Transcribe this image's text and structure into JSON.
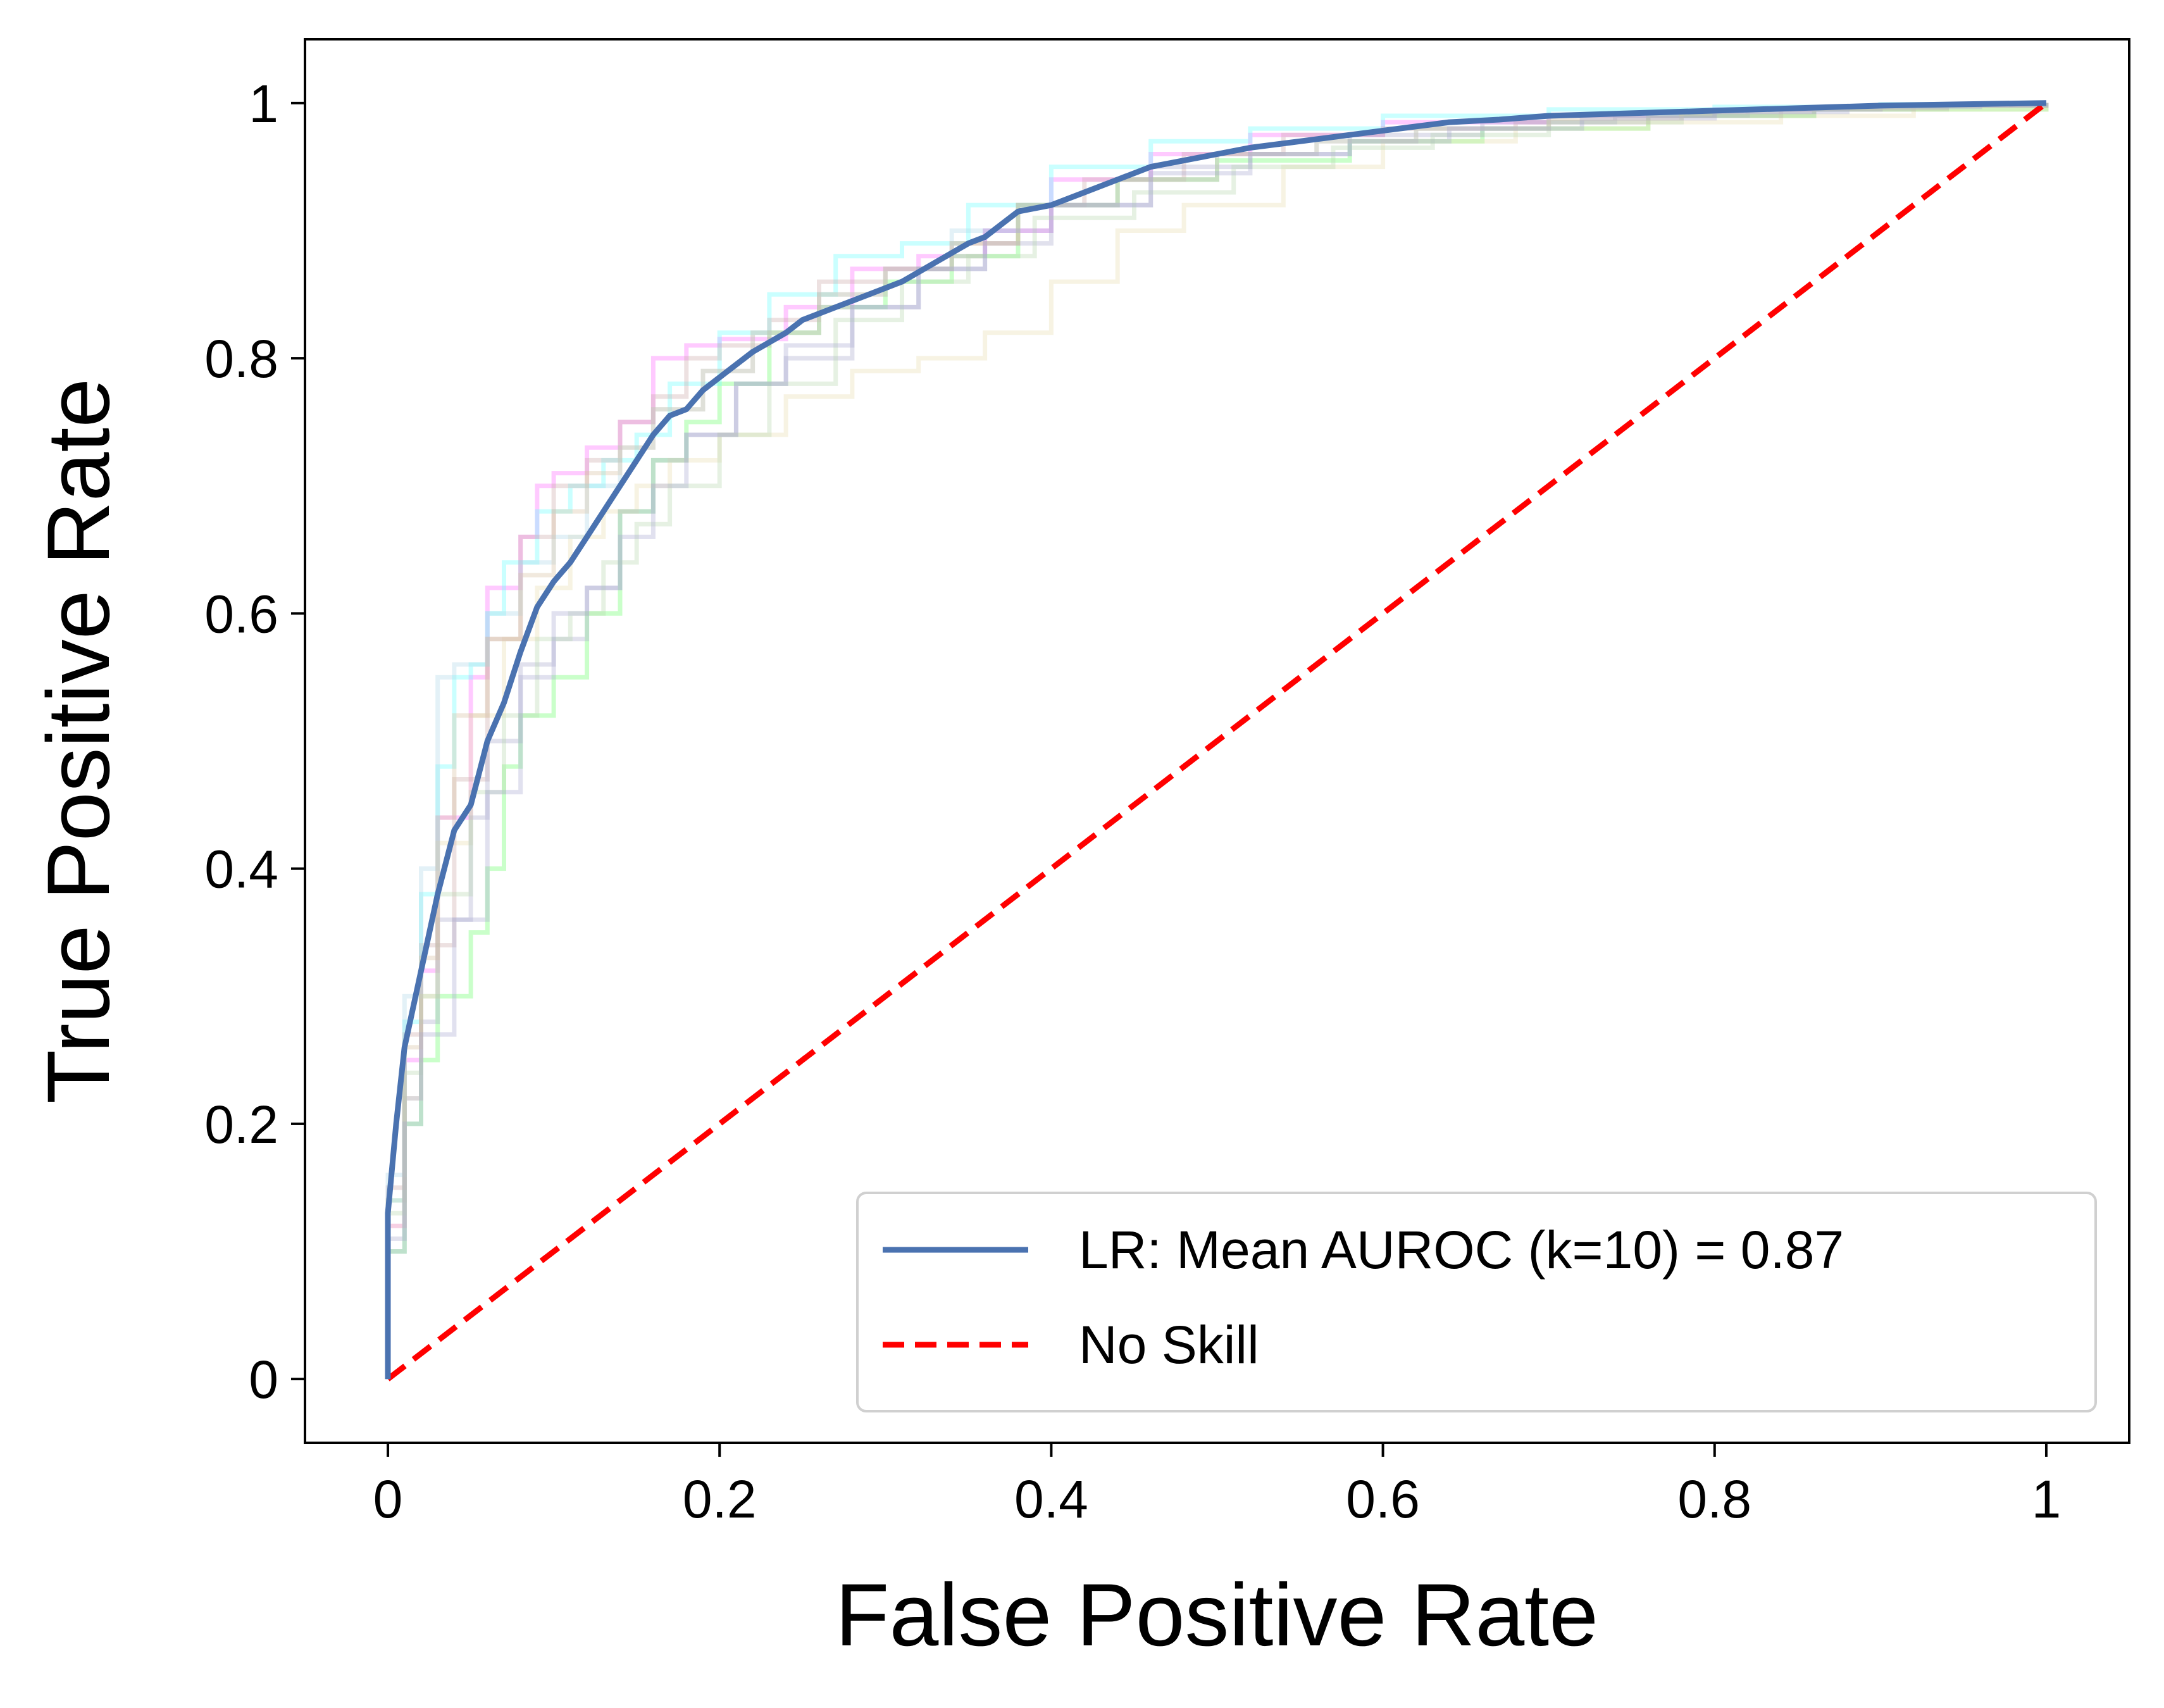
{
  "chart_data": {
    "type": "line",
    "title": "",
    "xlabel": "False Positive Rate",
    "ylabel": "True Positive Rate",
    "xlim": [
      -0.05,
      1.05
    ],
    "ylim": [
      -0.05,
      1.05
    ],
    "xticks": [
      0,
      0.2,
      0.4,
      0.6,
      0.8,
      1
    ],
    "xtick_labels": [
      "0",
      "0.2",
      "0.4",
      "0.6",
      "0.8",
      "1"
    ],
    "yticks": [
      0,
      0.2,
      0.4,
      0.6,
      0.8,
      1
    ],
    "ytick_labels": [
      "0",
      "0.2",
      "0.4",
      "0.6",
      "0.8",
      "1"
    ],
    "grid": false,
    "legend_position": "lower-right",
    "series": [
      {
        "name": "LR: Mean AUROC (k=10) = 0.87",
        "color": "#4a72b0",
        "style": "solid",
        "x": [
          0,
          0,
          0.005,
          0.01,
          0.02,
          0.03,
          0.04,
          0.05,
          0.06,
          0.07,
          0.08,
          0.09,
          0.1,
          0.11,
          0.12,
          0.13,
          0.14,
          0.15,
          0.16,
          0.17,
          0.18,
          0.19,
          0.2,
          0.22,
          0.24,
          0.25,
          0.27,
          0.29,
          0.31,
          0.33,
          0.35,
          0.36,
          0.38,
          0.4,
          0.42,
          0.44,
          0.46,
          0.48,
          0.5,
          0.52,
          0.55,
          0.58,
          0.61,
          0.64,
          0.67,
          0.7,
          0.75,
          0.8,
          0.85,
          0.9,
          0.95,
          1.0
        ],
        "y": [
          0,
          0.13,
          0.2,
          0.26,
          0.32,
          0.38,
          0.43,
          0.45,
          0.5,
          0.53,
          0.57,
          0.605,
          0.625,
          0.64,
          0.66,
          0.68,
          0.7,
          0.72,
          0.74,
          0.755,
          0.76,
          0.775,
          0.785,
          0.805,
          0.82,
          0.83,
          0.84,
          0.85,
          0.86,
          0.875,
          0.89,
          0.895,
          0.915,
          0.92,
          0.93,
          0.94,
          0.95,
          0.955,
          0.96,
          0.965,
          0.97,
          0.975,
          0.98,
          0.985,
          0.987,
          0.99,
          0.992,
          0.994,
          0.996,
          0.998,
          0.999,
          1.0
        ]
      },
      {
        "name": "No Skill",
        "color": "#ff0000",
        "style": "dashed",
        "x": [
          0,
          1
        ],
        "y": [
          0,
          1
        ]
      }
    ],
    "folds": [
      {
        "color": "#ff66ff",
        "x": [
          0,
          0,
          0.01,
          0.02,
          0.03,
          0.05,
          0.06,
          0.08,
          0.09,
          0.1,
          0.12,
          0.14,
          0.16,
          0.18,
          0.2,
          0.24,
          0.28,
          0.32,
          0.36,
          0.4,
          0.46,
          0.52,
          0.6,
          0.7,
          0.8,
          0.9,
          1.0
        ],
        "y": [
          0,
          0.12,
          0.25,
          0.32,
          0.44,
          0.55,
          0.62,
          0.66,
          0.7,
          0.71,
          0.73,
          0.75,
          0.8,
          0.81,
          0.815,
          0.84,
          0.87,
          0.88,
          0.9,
          0.94,
          0.96,
          0.975,
          0.985,
          0.99,
          0.995,
          0.998,
          1.0
        ]
      },
      {
        "color": "#66ff66",
        "x": [
          0,
          0,
          0.01,
          0.02,
          0.03,
          0.05,
          0.06,
          0.07,
          0.08,
          0.1,
          0.12,
          0.14,
          0.16,
          0.18,
          0.2,
          0.23,
          0.26,
          0.3,
          0.34,
          0.38,
          0.44,
          0.5,
          0.58,
          0.66,
          0.76,
          0.86,
          1.0
        ],
        "y": [
          0,
          0.1,
          0.2,
          0.25,
          0.3,
          0.35,
          0.4,
          0.48,
          0.52,
          0.55,
          0.6,
          0.68,
          0.72,
          0.75,
          0.78,
          0.82,
          0.84,
          0.86,
          0.88,
          0.92,
          0.94,
          0.955,
          0.97,
          0.98,
          0.99,
          0.995,
          1.0
        ]
      },
      {
        "color": "#66ffff",
        "x": [
          0,
          0,
          0.01,
          0.02,
          0.03,
          0.04,
          0.05,
          0.06,
          0.07,
          0.09,
          0.11,
          0.13,
          0.15,
          0.17,
          0.2,
          0.23,
          0.27,
          0.31,
          0.35,
          0.4,
          0.46,
          0.52,
          0.6,
          0.7,
          0.8,
          0.9,
          1.0
        ],
        "y": [
          0,
          0.14,
          0.28,
          0.38,
          0.48,
          0.55,
          0.56,
          0.6,
          0.64,
          0.68,
          0.7,
          0.72,
          0.74,
          0.78,
          0.82,
          0.85,
          0.88,
          0.89,
          0.92,
          0.95,
          0.97,
          0.98,
          0.99,
          0.995,
          0.997,
          0.999,
          1.0
        ]
      },
      {
        "color": "#e8dcb0",
        "x": [
          0,
          0,
          0.01,
          0.02,
          0.03,
          0.05,
          0.07,
          0.09,
          0.11,
          0.13,
          0.15,
          0.17,
          0.2,
          0.24,
          0.28,
          0.32,
          0.36,
          0.4,
          0.44,
          0.48,
          0.54,
          0.6,
          0.68,
          0.76,
          0.84,
          0.92,
          1.0
        ],
        "y": [
          0,
          0.12,
          0.22,
          0.3,
          0.42,
          0.52,
          0.58,
          0.62,
          0.66,
          0.68,
          0.7,
          0.72,
          0.74,
          0.77,
          0.79,
          0.8,
          0.82,
          0.86,
          0.9,
          0.92,
          0.95,
          0.97,
          0.98,
          0.985,
          0.99,
          0.995,
          1.0
        ]
      },
      {
        "color": "#ccaaaa",
        "x": [
          0,
          0,
          0.01,
          0.02,
          0.04,
          0.06,
          0.08,
          0.1,
          0.12,
          0.14,
          0.16,
          0.18,
          0.2,
          0.23,
          0.26,
          0.3,
          0.34,
          0.38,
          0.42,
          0.48,
          0.54,
          0.6,
          0.68,
          0.76,
          0.84,
          0.92,
          1.0
        ],
        "y": [
          0,
          0.15,
          0.27,
          0.34,
          0.47,
          0.58,
          0.66,
          0.7,
          0.72,
          0.75,
          0.77,
          0.8,
          0.81,
          0.83,
          0.86,
          0.87,
          0.89,
          0.92,
          0.94,
          0.96,
          0.975,
          0.98,
          0.985,
          0.99,
          0.995,
          0.998,
          1.0
        ]
      },
      {
        "color": "#aaaacc",
        "x": [
          0,
          0,
          0.01,
          0.02,
          0.03,
          0.05,
          0.06,
          0.08,
          0.1,
          0.12,
          0.14,
          0.16,
          0.18,
          0.21,
          0.24,
          0.28,
          0.32,
          0.36,
          0.4,
          0.46,
          0.52,
          0.58,
          0.66,
          0.74,
          0.82,
          0.9,
          1.0
        ],
        "y": [
          0,
          0.11,
          0.22,
          0.28,
          0.36,
          0.44,
          0.5,
          0.56,
          0.58,
          0.62,
          0.68,
          0.72,
          0.74,
          0.78,
          0.8,
          0.84,
          0.87,
          0.89,
          0.92,
          0.95,
          0.96,
          0.975,
          0.985,
          0.99,
          0.995,
          0.998,
          1.0
        ]
      },
      {
        "color": "#b0d8e8",
        "x": [
          0,
          0,
          0.01,
          0.02,
          0.03,
          0.04,
          0.06,
          0.08,
          0.1,
          0.12,
          0.14,
          0.16,
          0.19,
          0.22,
          0.26,
          0.3,
          0.34,
          0.38,
          0.44,
          0.5,
          0.56,
          0.62,
          0.7,
          0.78,
          0.86,
          0.94,
          1.0
        ],
        "y": [
          0,
          0.16,
          0.3,
          0.4,
          0.55,
          0.56,
          0.6,
          0.64,
          0.66,
          0.7,
          0.73,
          0.76,
          0.79,
          0.82,
          0.85,
          0.87,
          0.9,
          0.92,
          0.94,
          0.96,
          0.97,
          0.98,
          0.99,
          0.993,
          0.996,
          0.999,
          1.0
        ]
      },
      {
        "color": "#b8d8b0",
        "x": [
          0,
          0,
          0.01,
          0.02,
          0.03,
          0.05,
          0.07,
          0.09,
          0.11,
          0.13,
          0.15,
          0.17,
          0.2,
          0.23,
          0.27,
          0.31,
          0.35,
          0.39,
          0.45,
          0.51,
          0.57,
          0.63,
          0.7,
          0.78,
          0.86,
          0.94,
          1.0
        ],
        "y": [
          0,
          0.13,
          0.24,
          0.3,
          0.38,
          0.46,
          0.52,
          0.58,
          0.6,
          0.64,
          0.67,
          0.7,
          0.74,
          0.78,
          0.83,
          0.86,
          0.88,
          0.91,
          0.93,
          0.95,
          0.965,
          0.975,
          0.985,
          0.99,
          0.995,
          0.998,
          1.0
        ]
      },
      {
        "color": "#d8c0a0",
        "x": [
          0,
          0,
          0.01,
          0.02,
          0.03,
          0.04,
          0.06,
          0.08,
          0.1,
          0.12,
          0.14,
          0.16,
          0.19,
          0.22,
          0.26,
          0.3,
          0.34,
          0.38,
          0.44,
          0.5,
          0.56,
          0.62,
          0.7,
          0.78,
          0.86,
          0.94,
          1.0
        ],
        "y": [
          0,
          0.14,
          0.26,
          0.33,
          0.44,
          0.52,
          0.58,
          0.63,
          0.68,
          0.71,
          0.73,
          0.76,
          0.79,
          0.82,
          0.85,
          0.87,
          0.89,
          0.92,
          0.94,
          0.96,
          0.97,
          0.98,
          0.988,
          0.993,
          0.996,
          0.999,
          1.0
        ]
      },
      {
        "color": "#a8a8d0",
        "x": [
          0,
          0,
          0.01,
          0.02,
          0.04,
          0.06,
          0.08,
          0.1,
          0.12,
          0.14,
          0.16,
          0.18,
          0.21,
          0.24,
          0.28,
          0.32,
          0.36,
          0.4,
          0.46,
          0.52,
          0.58,
          0.64,
          0.72,
          0.8,
          0.88,
          0.96,
          1.0
        ],
        "y": [
          0,
          0.1,
          0.2,
          0.27,
          0.36,
          0.46,
          0.55,
          0.6,
          0.62,
          0.66,
          0.7,
          0.74,
          0.78,
          0.81,
          0.84,
          0.87,
          0.9,
          0.92,
          0.945,
          0.96,
          0.97,
          0.98,
          0.988,
          0.993,
          0.997,
          0.999,
          1.0
        ]
      }
    ]
  }
}
